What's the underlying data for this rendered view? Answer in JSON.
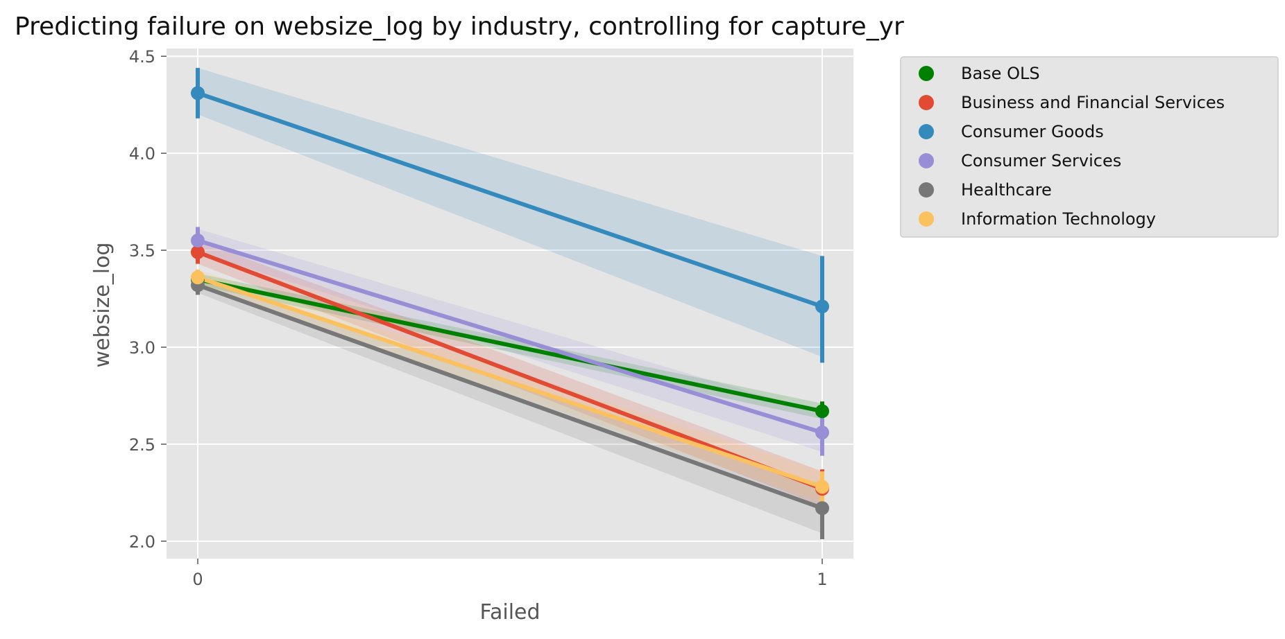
{
  "chart_data": {
    "type": "line",
    "title": "Predicting failure on websize_log by industry, controlling for capture_yr",
    "xlabel": "Failed",
    "ylabel": "websize_log",
    "x": [
      0,
      1
    ],
    "x_tick_labels": [
      "0",
      "1"
    ],
    "xlim": [
      -0.05,
      1.05
    ],
    "ylim": [
      1.91,
      4.54
    ],
    "y_ticks": [
      2.0,
      2.5,
      3.0,
      3.5,
      4.0,
      4.5
    ],
    "y_tick_labels": [
      "2.0",
      "2.5",
      "3.0",
      "3.5",
      "4.0",
      "4.5"
    ],
    "grid": true,
    "legend_position": "outside-top-right",
    "series": [
      {
        "name": "Base OLS",
        "color": "#008000",
        "values": [
          3.35,
          2.67
        ],
        "errors": [
          [
            3.31,
            3.39
          ],
          [
            2.62,
            2.72
          ]
        ],
        "band": [
          [
            3.32,
            3.38
          ],
          [
            2.63,
            2.71
          ]
        ]
      },
      {
        "name": "Business and Financial Services",
        "color": "#E24A33",
        "values": [
          3.49,
          2.27
        ],
        "errors": [
          [
            3.43,
            3.55
          ],
          [
            2.17,
            2.37
          ]
        ],
        "band": [
          [
            3.43,
            3.55
          ],
          [
            2.18,
            2.36
          ]
        ]
      },
      {
        "name": "Consumer Goods",
        "color": "#348ABD",
        "values": [
          4.31,
          3.21
        ],
        "errors": [
          [
            4.18,
            4.44
          ],
          [
            2.92,
            3.47
          ]
        ],
        "band": [
          [
            4.2,
            4.44
          ],
          [
            2.95,
            3.47
          ]
        ]
      },
      {
        "name": "Consumer Services",
        "color": "#988ED5",
        "values": [
          3.55,
          2.56
        ],
        "errors": [
          [
            3.48,
            3.62
          ],
          [
            2.44,
            2.68
          ]
        ],
        "band": [
          [
            3.49,
            3.61
          ],
          [
            2.46,
            2.66
          ]
        ]
      },
      {
        "name": "Healthcare",
        "color": "#777777",
        "values": [
          3.32,
          2.17
        ],
        "errors": [
          [
            3.27,
            3.37
          ],
          [
            2.01,
            2.28
          ]
        ],
        "band": [
          [
            3.28,
            3.36
          ],
          [
            2.04,
            2.29
          ]
        ]
      },
      {
        "name": "Information Technology",
        "color": "#FBC15E",
        "values": [
          3.36,
          2.28
        ],
        "errors": [
          [
            3.32,
            3.4
          ],
          [
            2.2,
            2.36
          ]
        ],
        "band": [
          [
            3.32,
            3.4
          ],
          [
            2.2,
            2.36
          ]
        ]
      }
    ]
  }
}
